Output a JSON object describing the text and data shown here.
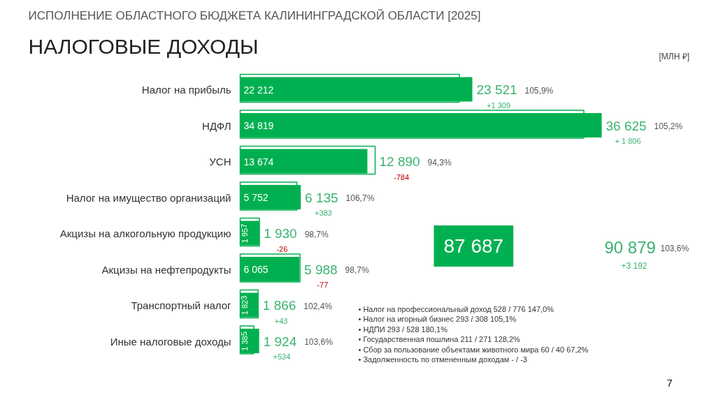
{
  "chart_data": {
    "type": "bar",
    "orientation": "horizontal",
    "title": "ИСПОЛНЕНИЕ ОБЛАСТНОГО БЮДЖЕТА КАЛИНИНГРАДСКОЙ ОБЛАСТИ [2025]",
    "subtitle": "НАЛОГОВЫЕ ДОХОДЫ",
    "categories": [
      "Налог на прибыль",
      "НДФЛ",
      "УСН",
      "Налог на имущество организаций",
      "Акцизы на алкогольную продукцию",
      "Акцизы на нефтепродукты",
      "Транспортный налог",
      "Иные налоговые доходы"
    ],
    "series": [
      {
        "color": "#00b050",
        "values": [
          22212,
          34819,
          13674,
          5752,
          1957,
          6065,
          1823,
          1385
        ],
        "value_labels": [
          "22 212",
          "34 819",
          "13 674",
          "5 752",
          "1 957",
          "6 065",
          "1 823",
          "1 385"
        ]
      },
      {
        "color": "#00b050",
        "values": [
          23521,
          36625,
          12890,
          6135,
          1930,
          5988,
          1866,
          1924
        ],
        "value_labels": [
          "23 521",
          "36 625",
          "12 890",
          "6 135",
          "1 930",
          "5 988",
          "1 866",
          "1 924"
        ]
      }
    ],
    "annotations": [
      "[МЛН ₽]",
      "7",
      "87 687",
      "90 879",
      "103,6%",
      "+3 192",
      "• Налог на профессиональный доход  528 / 776  147,0%",
      "• Налог на игорный бизнес  293 / 308  105,1%",
      "• НДПИ  293 / 528  180,1%",
      "• Государственная пошлина  211 / 271  128,2%",
      "• Сбор за пользование объектами животного мира  60 / 40  67,2%",
      "• Задолженность по отмененным доходам  - / -3",
      "105,9%",
      "+1 309",
      "105,2%",
      "+ 1 806",
      "94,3%",
      "-784",
      "106,7%",
      "+383",
      "98,7%",
      "-26",
      "98,7%",
      "-77",
      "102,4%",
      "+43",
      "103,6%",
      "+534"
    ]
  }
}
